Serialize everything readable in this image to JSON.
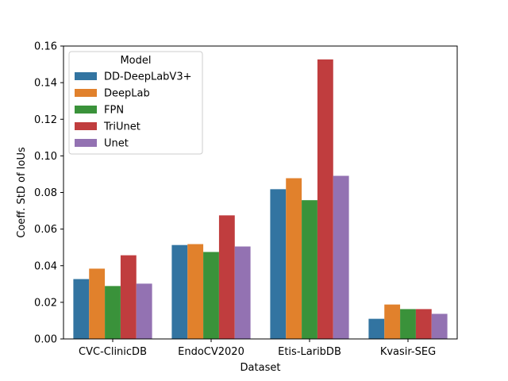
{
  "chart_data": {
    "type": "bar",
    "title": "",
    "xlabel": "Dataset",
    "ylabel": "Coeff. StD of IoUs",
    "ylim": [
      0,
      0.16
    ],
    "yticks": [
      0.0,
      0.02,
      0.04,
      0.06,
      0.08,
      0.1,
      0.12,
      0.14,
      0.16
    ],
    "ytick_labels": [
      "0.00",
      "0.02",
      "0.04",
      "0.06",
      "0.08",
      "0.10",
      "0.12",
      "0.14",
      "0.16"
    ],
    "categories": [
      "CVC-ClinicDB",
      "EndoCV2020",
      "Etis-LaribDB",
      "Kvasir-SEG"
    ],
    "legend_title": "Model",
    "legend_position": "top-left",
    "grid": false,
    "series": [
      {
        "name": "DD-DeepLabV3+",
        "color": "#3274a1",
        "values": [
          0.0327,
          0.0513,
          0.0818,
          0.011
        ]
      },
      {
        "name": "DeepLab",
        "color": "#e1812c",
        "values": [
          0.0384,
          0.0518,
          0.0878,
          0.0188
        ]
      },
      {
        "name": "FPN",
        "color": "#3a923a",
        "values": [
          0.0289,
          0.0475,
          0.0758,
          0.0163
        ]
      },
      {
        "name": "TriUnet",
        "color": "#c03d3e",
        "values": [
          0.0457,
          0.0675,
          0.1527,
          0.0163
        ]
      },
      {
        "name": "Unet",
        "color": "#9372b2",
        "values": [
          0.0302,
          0.0505,
          0.0891,
          0.0137
        ]
      }
    ]
  }
}
